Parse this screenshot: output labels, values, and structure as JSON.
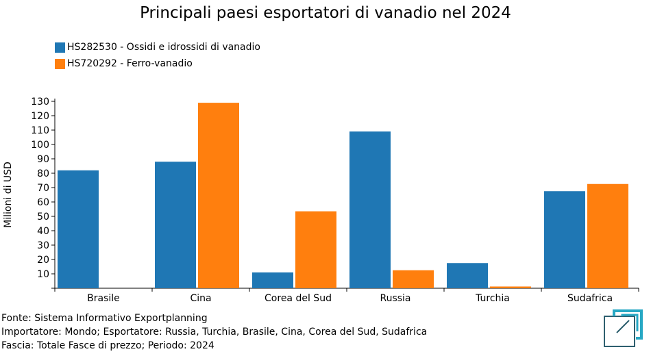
{
  "chart_data": {
    "type": "bar",
    "title": "Principali paesi esportatori di vanadio nel 2024",
    "xlabel": "",
    "ylabel": "Milioni di USD",
    "ylim": [
      0,
      130
    ],
    "yticks": [
      10,
      20,
      30,
      40,
      50,
      60,
      70,
      80,
      90,
      100,
      110,
      120,
      130
    ],
    "categories": [
      "Brasile",
      "Cina",
      "Corea del Sud",
      "Russia",
      "Turchia",
      "Sudafrica"
    ],
    "series": [
      {
        "name": "HS282530 - Ossidi e idrossidi di vanadio",
        "color": "#1f77b4",
        "values": [
          82,
          88,
          11,
          109,
          17.5,
          67.5
        ]
      },
      {
        "name": "HS720292 - Ferro-vanadio",
        "color": "#ff7f0e",
        "values": [
          0,
          129,
          53.5,
          12.5,
          1.2,
          72.5
        ]
      }
    ],
    "legend_position": "top-left"
  },
  "footer": {
    "source": "Fonte: Sistema Informativo Exportplanning",
    "importer": "Importatore: Mondo; Esportatore: Russia, Turchia, Brasile, Cina, Corea del Sud, Sudafrica",
    "range": "Fascia: Totale Fasce di prezzo; Periodo: 2024"
  },
  "colors": {
    "logo_dark": "#2e5f6f",
    "logo_light": "#27a8c4"
  }
}
